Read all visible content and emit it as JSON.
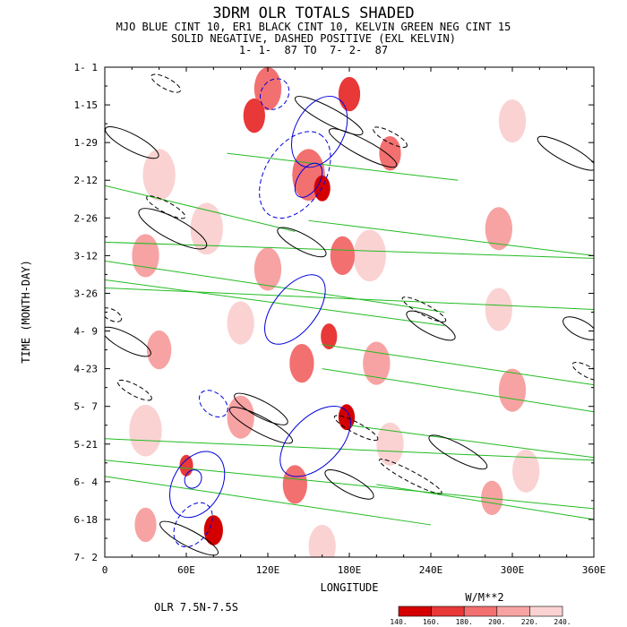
{
  "chart_data": {
    "type": "heatmap",
    "title_lines": [
      "3DRM OLR TOTALS SHADED",
      "MJO BLUE CINT 10, ER1 BLACK CINT 10, KELVIN GREEN NEG CINT 15",
      "SOLID NEGATIVE, DASHED POSITIVE (EXL KELVIN)",
      "1- 1-  87 TO  7- 2-  87"
    ],
    "xlabel": "LONGITUDE",
    "ylabel": "TIME (MONTH-DAY)",
    "x_ticks": [
      "0",
      "60E",
      "120E",
      "180E",
      "240E",
      "300E",
      "360E"
    ],
    "x_tick_values": [
      0,
      60,
      120,
      180,
      240,
      300,
      360
    ],
    "y_ticks": [
      "1- 1",
      "1-15",
      "1-29",
      "2-12",
      "2-26",
      "3-12",
      "3-26",
      "4- 9",
      "4-23",
      "5- 7",
      "5-21",
      "6- 4",
      "6-18",
      "7- 2"
    ],
    "y_tick_days": [
      0,
      14,
      28,
      42,
      56,
      70,
      84,
      98,
      112,
      126,
      140,
      154,
      168,
      182
    ],
    "xlim": [
      0,
      360
    ],
    "ylim_days": [
      0,
      182
    ],
    "footer_left": "OLR 7.5N-7.5S",
    "colorbar": {
      "unit_label": "W/M**2",
      "levels": [
        "140.",
        "160.",
        "180.",
        "200.",
        "220.",
        "240."
      ],
      "colors": [
        "#d40000",
        "#e83838",
        "#f27070",
        "#f7a3a3",
        "#fbd2d2"
      ]
    },
    "series": [
      {
        "name": "MJO",
        "color": "#0000dd",
        "contours": [
          {
            "lon": 158,
            "day": 24,
            "along": 28,
            "across": 9,
            "angle": -62,
            "dashed": false
          },
          {
            "lon": 150,
            "day": 42,
            "along": 14,
            "across": 4,
            "angle": -58,
            "dashed": false
          },
          {
            "lon": 140,
            "day": 40,
            "along": 35,
            "across": 11,
            "angle": -58,
            "dashed": true
          },
          {
            "lon": 125,
            "day": 10,
            "along": 12,
            "across": 5,
            "angle": -55,
            "dashed": true
          },
          {
            "lon": 140,
            "day": 90,
            "along": 30,
            "across": 8,
            "angle": -52,
            "dashed": false
          },
          {
            "lon": 155,
            "day": 139,
            "along": 32,
            "across": 9,
            "angle": -45,
            "dashed": false
          },
          {
            "lon": 68,
            "day": 155,
            "along": 26,
            "across": 9,
            "angle": -60,
            "dashed": false
          },
          {
            "lon": 65,
            "day": 153,
            "along": 7,
            "across": 3,
            "angle": -60,
            "dashed": false
          },
          {
            "lon": 65,
            "day": 170,
            "along": 18,
            "across": 6,
            "angle": -55,
            "dashed": true
          },
          {
            "lon": 80,
            "day": 125,
            "along": 12,
            "across": 4,
            "angle": 40,
            "dashed": true
          }
        ]
      },
      {
        "name": "ER1",
        "color": "#000000",
        "contours": [
          {
            "lon": 20,
            "day": 28,
            "along": 22,
            "across": 3,
            "angle": 28,
            "dashed": false
          },
          {
            "lon": 50,
            "day": 60,
            "along": 28,
            "across": 4,
            "angle": 28,
            "dashed": false
          },
          {
            "lon": 16,
            "day": 102,
            "along": 20,
            "across": 3,
            "angle": 28,
            "dashed": false
          },
          {
            "lon": 115,
            "day": 127,
            "along": 22,
            "across": 3,
            "angle": 28,
            "dashed": false
          },
          {
            "lon": 165,
            "day": 18,
            "along": 28,
            "across": 3,
            "angle": 28,
            "dashed": false
          },
          {
            "lon": 190,
            "day": 30,
            "along": 28,
            "across": 3,
            "angle": 28,
            "dashed": false
          },
          {
            "lon": 145,
            "day": 65,
            "along": 20,
            "across": 3,
            "angle": 28,
            "dashed": false
          },
          {
            "lon": 115,
            "day": 133,
            "along": 26,
            "across": 3,
            "angle": 28,
            "dashed": false
          },
          {
            "lon": 240,
            "day": 96,
            "along": 20,
            "across": 3,
            "angle": 28,
            "dashed": false
          },
          {
            "lon": 180,
            "day": 155,
            "along": 20,
            "across": 3,
            "angle": 28,
            "dashed": false
          },
          {
            "lon": 62,
            "day": 175,
            "along": 24,
            "across": 3,
            "angle": 28,
            "dashed": false
          },
          {
            "lon": 340,
            "day": 32,
            "along": 24,
            "across": 3,
            "angle": 28,
            "dashed": false
          },
          {
            "lon": 350,
            "day": 97,
            "along": 14,
            "across": 3,
            "angle": 28,
            "dashed": false
          },
          {
            "lon": 260,
            "day": 143,
            "along": 24,
            "across": 3,
            "angle": 28,
            "dashed": false
          },
          {
            "lon": 45,
            "day": 6,
            "along": 12,
            "across": 2,
            "angle": 28,
            "dashed": true
          },
          {
            "lon": 210,
            "day": 26,
            "along": 14,
            "across": 2,
            "angle": 28,
            "dashed": true
          },
          {
            "lon": 45,
            "day": 52,
            "along": 16,
            "across": 2,
            "angle": 28,
            "dashed": true
          },
          {
            "lon": 235,
            "day": 90,
            "along": 18,
            "across": 2,
            "angle": 28,
            "dashed": true
          },
          {
            "lon": 22,
            "day": 120,
            "along": 14,
            "across": 2,
            "angle": 28,
            "dashed": true
          },
          {
            "lon": 185,
            "day": 134,
            "along": 18,
            "across": 2,
            "angle": 28,
            "dashed": true
          },
          {
            "lon": 225,
            "day": 152,
            "along": 26,
            "across": 2,
            "angle": 28,
            "dashed": true
          },
          {
            "lon": 355,
            "day": 113,
            "along": 12,
            "across": 2,
            "angle": 28,
            "dashed": true
          },
          {
            "lon": 5,
            "day": 92,
            "along": 8,
            "across": 2,
            "angle": 28,
            "dashed": true
          }
        ]
      },
      {
        "name": "KELVIN",
        "color": "#22bb22",
        "lines": [
          {
            "lon0": 0,
            "day0": 44,
            "lon1": 140,
            "day1": 61
          },
          {
            "lon0": 0,
            "day0": 65,
            "lon1": 360,
            "day1": 71
          },
          {
            "lon0": 0,
            "day0": 82,
            "lon1": 360,
            "day1": 90
          },
          {
            "lon0": 0,
            "day0": 72,
            "lon1": 250,
            "day1": 91
          },
          {
            "lon0": 0,
            "day0": 79,
            "lon1": 250,
            "day1": 96
          },
          {
            "lon0": 90,
            "day0": 32,
            "lon1": 260,
            "day1": 42
          },
          {
            "lon0": 150,
            "day0": 57,
            "lon1": 360,
            "day1": 70
          },
          {
            "lon0": 160,
            "day0": 103,
            "lon1": 360,
            "day1": 118
          },
          {
            "lon0": 160,
            "day0": 112,
            "lon1": 360,
            "day1": 128
          },
          {
            "lon0": 0,
            "day0": 138,
            "lon1": 360,
            "day1": 146
          },
          {
            "lon0": 0,
            "day0": 146,
            "lon1": 360,
            "day1": 164
          },
          {
            "lon0": 0,
            "day0": 152,
            "lon1": 240,
            "day1": 170
          },
          {
            "lon0": 180,
            "day0": 133,
            "lon1": 360,
            "day1": 145
          },
          {
            "lon0": 200,
            "day0": 155,
            "lon1": 360,
            "day1": 168
          }
        ]
      }
    ],
    "olr_low_cells": [
      {
        "lon": 160,
        "day": 45,
        "r": 6,
        "val": 140
      },
      {
        "lon": 110,
        "day": 18,
        "r": 8,
        "val": 160
      },
      {
        "lon": 150,
        "day": 40,
        "r": 12,
        "val": 180
      },
      {
        "lon": 180,
        "day": 10,
        "r": 8,
        "val": 160
      },
      {
        "lon": 120,
        "day": 8,
        "r": 10,
        "val": 180
      },
      {
        "lon": 210,
        "day": 32,
        "r": 8,
        "val": 180
      },
      {
        "lon": 178,
        "day": 130,
        "r": 6,
        "val": 140
      },
      {
        "lon": 165,
        "day": 100,
        "r": 6,
        "val": 160
      },
      {
        "lon": 80,
        "day": 172,
        "r": 7,
        "val": 140
      },
      {
        "lon": 60,
        "day": 148,
        "r": 5,
        "val": 160
      },
      {
        "lon": 145,
        "day": 110,
        "r": 9,
        "val": 180
      },
      {
        "lon": 140,
        "day": 155,
        "r": 9,
        "val": 180
      },
      {
        "lon": 175,
        "day": 70,
        "r": 9,
        "val": 180
      },
      {
        "lon": 120,
        "day": 75,
        "r": 10,
        "val": 200
      },
      {
        "lon": 30,
        "day": 70,
        "r": 10,
        "val": 200
      },
      {
        "lon": 40,
        "day": 105,
        "r": 9,
        "val": 200
      },
      {
        "lon": 290,
        "day": 60,
        "r": 10,
        "val": 200
      },
      {
        "lon": 300,
        "day": 120,
        "r": 10,
        "val": 200
      },
      {
        "lon": 285,
        "day": 160,
        "r": 8,
        "val": 200
      },
      {
        "lon": 30,
        "day": 170,
        "r": 8,
        "val": 200
      },
      {
        "lon": 100,
        "day": 130,
        "r": 10,
        "val": 200
      },
      {
        "lon": 200,
        "day": 110,
        "r": 10,
        "val": 200
      },
      {
        "lon": 75,
        "day": 60,
        "r": 12,
        "val": 220
      },
      {
        "lon": 40,
        "day": 40,
        "r": 12,
        "val": 220
      },
      {
        "lon": 300,
        "day": 20,
        "r": 10,
        "val": 220
      },
      {
        "lon": 290,
        "day": 90,
        "r": 10,
        "val": 220
      },
      {
        "lon": 310,
        "day": 150,
        "r": 10,
        "val": 220
      },
      {
        "lon": 195,
        "day": 70,
        "r": 12,
        "val": 220
      },
      {
        "lon": 160,
        "day": 178,
        "r": 10,
        "val": 220
      },
      {
        "lon": 100,
        "day": 95,
        "r": 10,
        "val": 220
      },
      {
        "lon": 30,
        "day": 135,
        "r": 12,
        "val": 220
      },
      {
        "lon": 210,
        "day": 140,
        "r": 10,
        "val": 220
      }
    ]
  }
}
